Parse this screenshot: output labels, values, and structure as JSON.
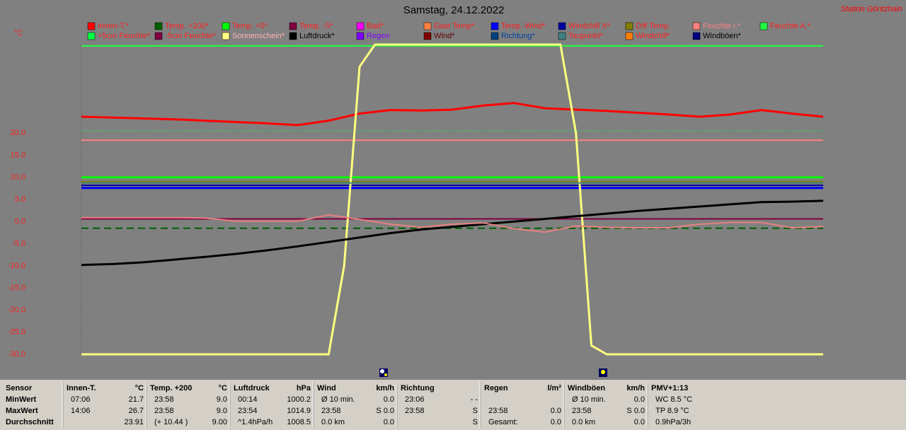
{
  "chart_data": {
    "type": "line",
    "title": "Samstag, 24.12.2022",
    "station": "Station Göritzhain",
    "y_unit": "°C",
    "ylim": [
      -30,
      40
    ],
    "yticks": [
      {
        "value": -30,
        "label": "-30.0"
      },
      {
        "value": -25,
        "label": "-25.0"
      },
      {
        "value": -20,
        "label": "-20.0"
      },
      {
        "value": -15,
        "label": "-15.0"
      },
      {
        "value": -10,
        "label": "-10.0"
      },
      {
        "value": -5,
        "label": "-5.0"
      },
      {
        "value": 0,
        "label": "0.0"
      },
      {
        "value": 5,
        "label": "5.0"
      },
      {
        "value": 10,
        "label": "10.0"
      },
      {
        "value": 15,
        "label": "15.0"
      },
      {
        "value": 20,
        "label": "20.0"
      }
    ],
    "series": [
      {
        "name": "Innen-T.*",
        "color": "#ff0000",
        "label_color": "#ff2020",
        "width": 3,
        "values": [
          23.7,
          23.5,
          23.3,
          23.1,
          22.8,
          22.5,
          22.2,
          21.8,
          22.8,
          24.4,
          25.2,
          25.1,
          25.3,
          26.2,
          26.8,
          25.6,
          25.3,
          25.0,
          24.6,
          24.2,
          23.7,
          24.2,
          25.2,
          24.4,
          23.7
        ]
      },
      {
        "name": "Temp. +200*",
        "color": "#006000",
        "label_color": "#ff2020",
        "width": 2,
        "dash": "10 6",
        "values": [
          -1.5,
          -1.5
        ]
      },
      {
        "name": "Temp. +5*",
        "color": "#00ff00",
        "label_color": "#ff2020",
        "width": 3,
        "values": [
          10.0,
          10.0
        ]
      },
      {
        "name": "Temp. -5*",
        "color": "#800040",
        "label_color": "#ff2020",
        "width": 2,
        "values": [
          0.6,
          0.6
        ]
      },
      {
        "name": "Bad*",
        "color": "#ff00ff",
        "label_color": "#ff2020"
      },
      {
        "name": "Gast Temp*",
        "color": "#ff8040",
        "label_color": "#ff2020"
      },
      {
        "name": "Temp. Wind*",
        "color": "#0000ff",
        "label_color": "#ff2020",
        "width": 3,
        "values": [
          7.6,
          7.6
        ]
      },
      {
        "name": "Windchill X*",
        "color": "#0000a0",
        "label_color": "#ff2020",
        "width": 2,
        "values": [
          8.2,
          8.2
        ]
      },
      {
        "name": "Diff Temp.",
        "color": "#808000",
        "label_color": "#ff2020",
        "width": 2,
        "values": [
          9.0,
          9.0
        ]
      },
      {
        "name": "Feuchte I.*",
        "color": "#ff8080",
        "label_color": "#ff8080",
        "width": 2,
        "values": [
          18.4,
          18.4
        ]
      },
      {
        "name": "Feuchte A.*",
        "color": "#20ff40",
        "label_color": "#ff2020",
        "width": 2,
        "values": [
          39.7,
          39.7
        ]
      },
      {
        "name": "+5cm Feuchte*",
        "color": "#00ff40",
        "label_color": "#ff2020",
        "width": 1,
        "dash": "2 3",
        "values": [
          20.5,
          20.5
        ]
      },
      {
        "name": "-5cm Feuchte*",
        "color": "#800040",
        "label_color": "#ff2020"
      },
      {
        "name": "Sonnenschein*",
        "color": "#ffff80",
        "label_color": "#ffb0b0",
        "width": 3,
        "values": [
          -30,
          -30,
          -30,
          -30,
          -30,
          -30,
          -30,
          -30,
          -30,
          -30,
          -30,
          -30,
          -30,
          -30,
          -30,
          -30,
          -30,
          -10,
          35,
          40,
          40,
          40,
          40,
          40,
          40,
          40,
          40,
          40,
          40,
          40,
          40,
          40,
          20,
          -28,
          -30,
          -30,
          -30,
          -30,
          -30,
          -30,
          -30,
          -30,
          -30,
          -30,
          -30,
          -30,
          -30,
          -30,
          -30
        ]
      },
      {
        "name": "Luftdruck*",
        "color": "#000000",
        "label_color": "#000000",
        "width": 3,
        "values": [
          -9.8,
          -9.6,
          -9.2,
          -8.6,
          -8.0,
          -7.3,
          -6.5,
          -5.6,
          -4.6,
          -3.6,
          -2.6,
          -1.8,
          -1.2,
          -0.6,
          0.0,
          0.6,
          1.2,
          1.8,
          2.4,
          2.9,
          3.4,
          3.9,
          4.4,
          4.5,
          4.7
        ]
      },
      {
        "name": "Regen",
        "color": "#8000ff",
        "label_color": "#8000ff"
      },
      {
        "name": "Wind*",
        "color": "#800000",
        "label_color": "#600000"
      },
      {
        "name": "Richtung*",
        "color": "#004080",
        "label_color": "#0040a0"
      },
      {
        "name": "Taupunkt*",
        "color": "#408080",
        "label_color": "#ff2020",
        "width": 2,
        "values": [
          8.7,
          8.7
        ]
      },
      {
        "name": "Windchill*",
        "color": "#ff8000",
        "label_color": "#ff2020",
        "width": 2,
        "values": [
          0.9,
          0.9,
          0.9,
          0.9,
          0.8,
          0.1,
          0.1,
          0.1,
          1.5,
          0.5,
          -0.6,
          -1.3,
          -0.6,
          -0.3,
          -1.6,
          -2.4,
          -1.0,
          -1.3,
          -1.4,
          -1.4,
          -0.6,
          -0.2,
          -0.2,
          -1.4,
          -1.1
        ],
        "line_color": "#e88080"
      },
      {
        "name": "Windböen*",
        "color": "#000080",
        "label_color": "#000000"
      }
    ]
  },
  "table": {
    "row_labels": [
      "Sensor",
      "MinWert",
      "MaxWert",
      "Durchschnitt"
    ],
    "columns": [
      {
        "header": "Innen-T.",
        "unit": "°C",
        "rows": [
          [
            "07:06",
            "21.7"
          ],
          [
            "14:06",
            "26.7"
          ],
          [
            null,
            "23.91"
          ]
        ]
      },
      {
        "header": "Temp. +200",
        "unit": "°C",
        "rows": [
          [
            "23:58",
            "9.0"
          ],
          [
            "23:58",
            "9.0"
          ],
          [
            "(+ 10.44 )",
            "9.00"
          ]
        ]
      },
      {
        "header": "Luftdruck",
        "unit": "hPa",
        "rows": [
          [
            "00:14",
            "1000.2"
          ],
          [
            "23:54",
            "1014.9"
          ],
          [
            "^1.4hPa/h",
            "1008.5"
          ]
        ]
      },
      {
        "header": "Wind",
        "unit": "km/h",
        "rows": [
          [
            "Ø 10 min.",
            "0.0"
          ],
          [
            "23:58",
            "S 0.0"
          ],
          [
            "0.0 km",
            "0.0"
          ]
        ]
      },
      {
        "header": "Richtung",
        "unit": null,
        "rows": [
          [
            "23:06",
            "- -"
          ],
          [
            "23:58",
            "S"
          ],
          [
            null,
            "S"
          ]
        ]
      },
      {
        "header": "Regen",
        "unit": "l/m²",
        "rows": [
          [
            null,
            null
          ],
          [
            "23:58",
            "0.0"
          ],
          [
            "Gesamt:",
            "0.0"
          ]
        ]
      },
      {
        "header": "Windböen",
        "unit": "km/h",
        "rows": [
          [
            "Ø 10 min.",
            "0.0"
          ],
          [
            "23:58",
            "S 0.0"
          ],
          [
            "0.0 km",
            "0.0"
          ]
        ]
      },
      {
        "header": "PMV+1:13",
        "unit": null,
        "rows": [
          [
            "WC 8.5 °C",
            null
          ],
          [
            "TP 8.9 °C",
            null
          ],
          [
            "0.9hPa/3h",
            null
          ]
        ]
      }
    ]
  }
}
